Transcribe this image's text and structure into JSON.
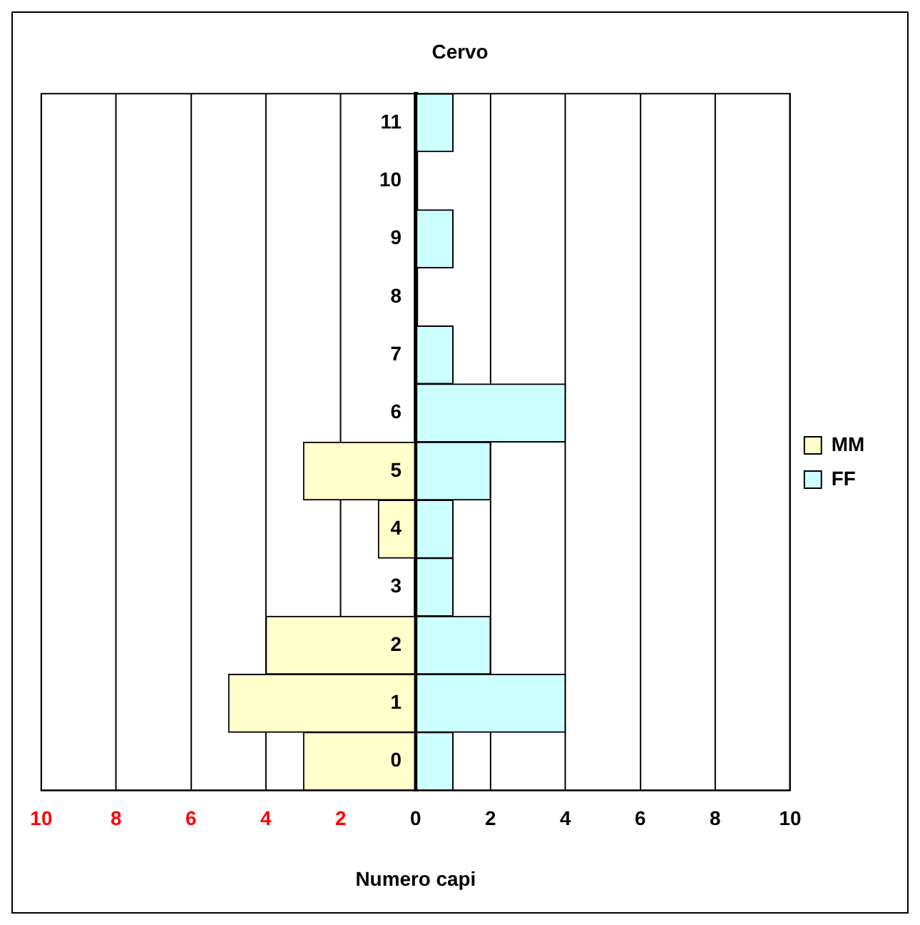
{
  "chart_data": {
    "type": "bar",
    "orientation": "horizontal",
    "stacked": true,
    "title": "Cervo",
    "xlabel": "Numero capi",
    "categories": [
      "11",
      "10",
      "9",
      "8",
      "7",
      "6",
      "5",
      "4",
      "3",
      "2",
      "1",
      "0"
    ],
    "series": [
      {
        "name": "MM",
        "color": "#ffffcc",
        "values": [
          0,
          0,
          0,
          0,
          0,
          0,
          -3,
          -1,
          0,
          -4,
          -5,
          -3
        ]
      },
      {
        "name": "FF",
        "color": "#ccffff",
        "values": [
          1,
          0,
          1,
          0,
          1,
          4,
          2,
          1,
          1,
          2,
          4,
          1
        ]
      }
    ],
    "xlim": [
      -10,
      10
    ],
    "xticks": [
      {
        "value": -10,
        "label": "10"
      },
      {
        "value": -8,
        "label": "8"
      },
      {
        "value": -6,
        "label": "6"
      },
      {
        "value": -4,
        "label": "4"
      },
      {
        "value": -2,
        "label": "2"
      },
      0,
      2,
      4,
      6,
      8,
      10
    ],
    "grid": "x",
    "legend": "right"
  }
}
